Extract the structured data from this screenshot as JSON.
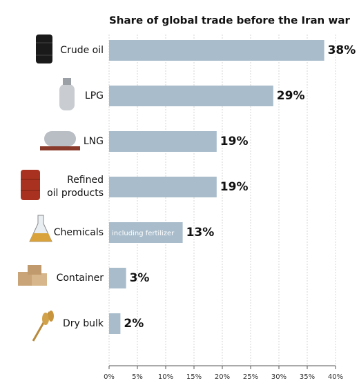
{
  "chart_data": {
    "type": "bar",
    "orientation": "horizontal",
    "title": "Share of global trade before the Iran war",
    "categories": [
      "Crude oil",
      "LPG",
      "LNG",
      "Refined\noil products",
      "Chemicals",
      "Container",
      "Dry bulk"
    ],
    "values": [
      38,
      29,
      19,
      19,
      13,
      3,
      2
    ],
    "value_labels": [
      "38%",
      "29%",
      "19%",
      "19%",
      "13%",
      "3%",
      "2%"
    ],
    "notes": [
      null,
      null,
      null,
      null,
      "including fertilizer",
      null,
      null
    ],
    "color": "#a8bccb",
    "xlim": [
      0,
      40
    ],
    "xticks": [
      {
        "value": 0,
        "label": "0%"
      },
      {
        "value": 5,
        "label": "5%"
      },
      {
        "value": 10,
        "label": "10%"
      },
      {
        "value": 15,
        "label": "15%"
      },
      {
        "value": 20,
        "label": "20%"
      },
      {
        "value": 25,
        "label": "25%"
      },
      {
        "value": 30,
        "label": "30%"
      },
      {
        "value": 35,
        "label": "35%"
      },
      {
        "value": 40,
        "label": "40%"
      }
    ],
    "grid": true
  }
}
